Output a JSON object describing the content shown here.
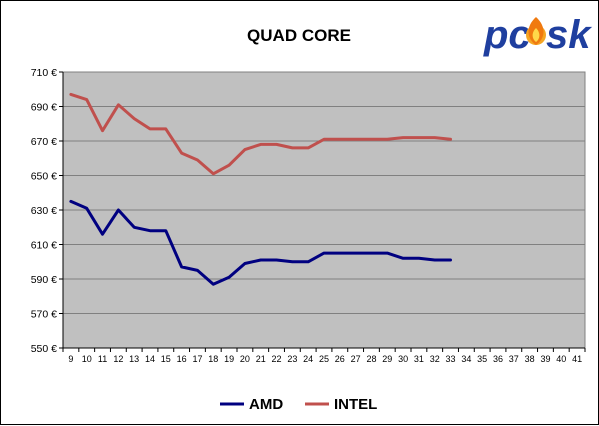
{
  "chart_data": {
    "type": "line",
    "title": "QUAD CORE",
    "xlabel": "",
    "ylabel": "",
    "x": [
      9,
      10,
      11,
      12,
      13,
      14,
      15,
      16,
      17,
      18,
      19,
      20,
      21,
      22,
      23,
      24,
      25,
      26,
      27,
      28,
      29,
      30,
      31,
      32,
      33
    ],
    "x_ticks": [
      "9",
      "10",
      "11",
      "12",
      "13",
      "14",
      "15",
      "16",
      "17",
      "18",
      "19",
      "20",
      "21",
      "22",
      "23",
      "24",
      "25",
      "26",
      "27",
      "28",
      "29",
      "30",
      "31",
      "32",
      "33",
      "34",
      "35",
      "36",
      "37",
      "38",
      "39",
      "40",
      "41"
    ],
    "xlim": [
      9,
      41
    ],
    "y_ticks": [
      "550 €",
      "570 €",
      "590 €",
      "610 €",
      "630 €",
      "650 €",
      "670 €",
      "690 €",
      "710 €"
    ],
    "ylim": [
      550,
      710
    ],
    "ytick_step": 20,
    "grid": "horizontal",
    "legend_position": "bottom",
    "series": [
      {
        "name": "AMD",
        "color": "#000080",
        "values": [
          635,
          631,
          616,
          630,
          620,
          618,
          618,
          597,
          595,
          587,
          591,
          599,
          601,
          601,
          600,
          600,
          605,
          605,
          605,
          605,
          605,
          602,
          602,
          601,
          601
        ]
      },
      {
        "name": "INTEL",
        "color": "#C0504D",
        "values": [
          697,
          694,
          676,
          691,
          683,
          677,
          677,
          663,
          659,
          651,
          656,
          665,
          668,
          668,
          666,
          666,
          671,
          671,
          671,
          671,
          671,
          672,
          672,
          672,
          671
        ]
      }
    ]
  },
  "logo": {
    "text_left": "pc",
    "text_right": "sk",
    "icon": "flame-icon",
    "color": "#1f3f9f",
    "flame_color": "#f07a10"
  },
  "colors": {
    "plot_background": "#C0C0C0",
    "grid": "#808080"
  }
}
